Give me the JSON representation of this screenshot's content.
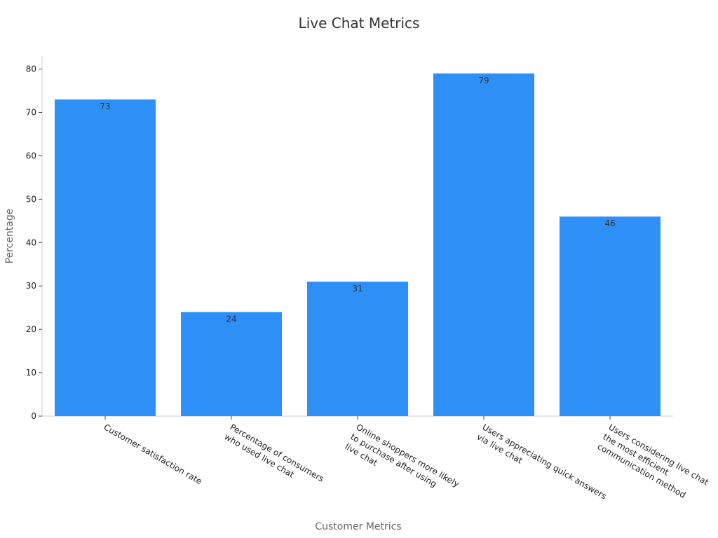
{
  "chart_data": {
    "type": "bar",
    "title": "Live Chat Metrics",
    "x_label": "Customer Metrics",
    "y_label": "Percentage",
    "categories": [
      "Customer satisfaction rate",
      "Percentage of consumers\nwho used live chat",
      "Online shoppers more likely\nto purchase after using\nlive chat",
      "Users appreciating quick answers\nvia live chat",
      "Users considering live chat\nthe most efficient\ncommunication method"
    ],
    "values": [
      73,
      24,
      31,
      79,
      46
    ],
    "color": "#2e90f7",
    "ylim": [
      0,
      83
    ],
    "yticks": [
      0,
      10,
      20,
      30,
      40,
      50,
      60,
      70,
      80
    ]
  }
}
